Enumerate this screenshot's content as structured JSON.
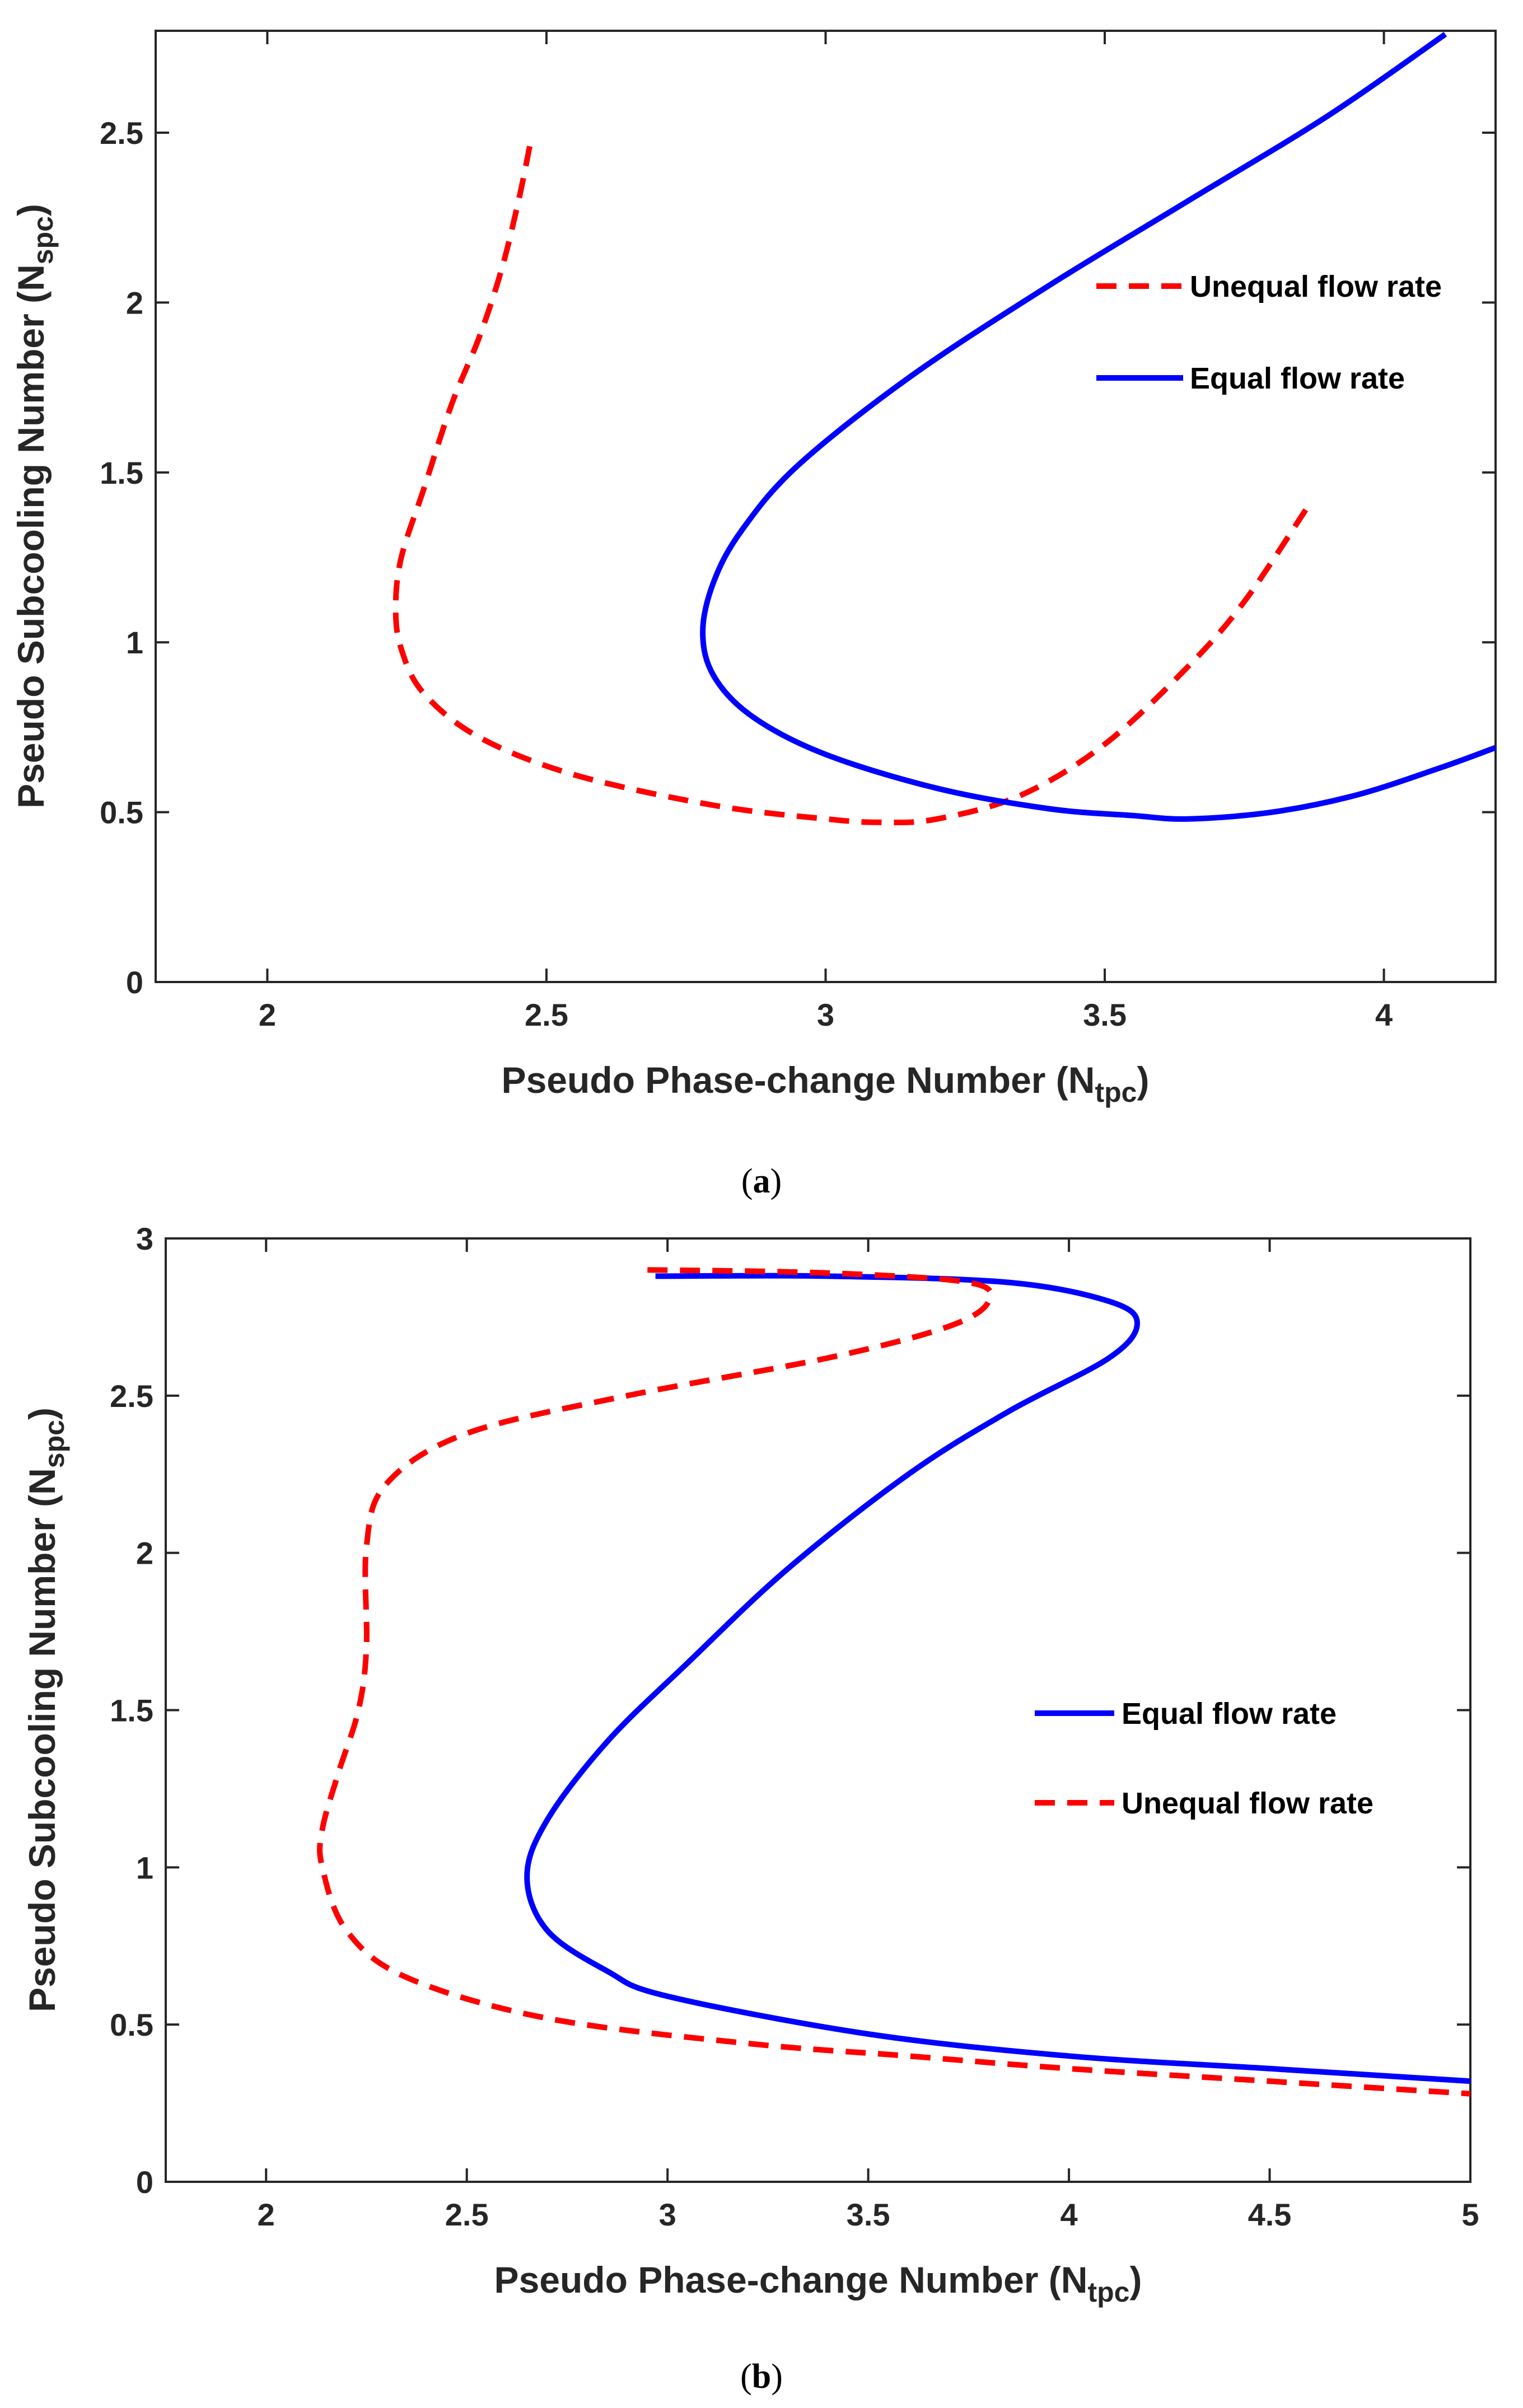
{
  "chart_data": [
    {
      "panel": "(a)",
      "type": "line",
      "caption_open": "(",
      "caption_letter": "a",
      "caption_close": ")",
      "xlabel_main": "Pseudo Phase-change Number (N",
      "xlabel_sub": "tpc",
      "xlabel_close": ")",
      "ylabel_main": "Pseudo Subcooling Number (N",
      "ylabel_sub": "spc",
      "ylabel_close": ")",
      "xlim": [
        1.8,
        4.2
      ],
      "ylim": [
        0,
        2.8
      ],
      "xticks": [
        "2",
        "2.5",
        "3",
        "3.5",
        "4"
      ],
      "xtick_values": [
        2,
        2.5,
        3,
        3.5,
        4
      ],
      "yticks": [
        "0",
        "0.5",
        "1",
        "1.5",
        "2",
        "2.5"
      ],
      "ytick_values": [
        0,
        0.5,
        1,
        1.5,
        2,
        2.5
      ],
      "legend_location": "right",
      "series": [
        {
          "name": "Unequal flow rate",
          "color": "#ff0000",
          "style": "dashed",
          "x": [
            2.47,
            2.45,
            2.42,
            2.38,
            2.33,
            2.28,
            2.24,
            2.23,
            2.24,
            2.28,
            2.38,
            2.55,
            2.8,
            3.0,
            3.1,
            3.2,
            3.35,
            3.5,
            3.65,
            3.75,
            3.86
          ],
          "y": [
            2.46,
            2.3,
            2.1,
            1.9,
            1.7,
            1.45,
            1.25,
            1.1,
            0.98,
            0.85,
            0.72,
            0.61,
            0.52,
            0.48,
            0.47,
            0.48,
            0.55,
            0.7,
            0.93,
            1.12,
            1.39
          ]
        },
        {
          "name": "Equal flow rate",
          "color": "#0000ff",
          "style": "solid",
          "x": [
            4.11,
            3.9,
            3.65,
            3.4,
            3.15,
            2.95,
            2.85,
            2.8,
            2.78,
            2.8,
            2.87,
            3.0,
            3.2,
            3.4,
            3.55,
            3.65,
            3.8,
            3.95,
            4.1,
            4.2
          ],
          "y": [
            2.79,
            2.55,
            2.3,
            2.05,
            1.78,
            1.52,
            1.33,
            1.18,
            1.03,
            0.9,
            0.78,
            0.67,
            0.57,
            0.51,
            0.49,
            0.48,
            0.5,
            0.55,
            0.63,
            0.69
          ]
        }
      ]
    },
    {
      "panel": "(b)",
      "type": "line",
      "caption_open": "(",
      "caption_letter": "b",
      "caption_close": ")",
      "xlabel_main": "Pseudo Phase-change Number (N",
      "xlabel_sub": "tpc",
      "xlabel_close": ")",
      "ylabel_main": "Pseudo Subcooling Number (N",
      "ylabel_sub": "spc",
      "ylabel_close": ")",
      "xlim": [
        1.75,
        5
      ],
      "ylim": [
        0,
        3
      ],
      "xticks": [
        "2",
        "2.5",
        "3",
        "3.5",
        "4",
        "4.5",
        "5"
      ],
      "xtick_values": [
        2,
        2.5,
        3,
        3.5,
        4,
        4.5,
        5
      ],
      "yticks": [
        "0",
        "0.5",
        "1",
        "1.5",
        "2",
        "2.5",
        "3"
      ],
      "ytick_values": [
        0,
        0.5,
        1,
        1.5,
        2,
        2.5,
        3
      ],
      "legend_location": "right",
      "series": [
        {
          "name": "Equal flow rate",
          "color": "#0000ff",
          "style": "solid",
          "x": [
            2.97,
            3.4,
            3.85,
            4.1,
            4.17,
            4.1,
            3.85,
            3.6,
            3.3,
            3.05,
            2.85,
            2.7,
            2.65,
            2.7,
            2.85,
            3.0,
            3.5,
            4.0,
            4.5,
            5.0
          ],
          "y": [
            2.88,
            2.88,
            2.86,
            2.8,
            2.73,
            2.62,
            2.45,
            2.25,
            1.95,
            1.65,
            1.4,
            1.15,
            0.97,
            0.8,
            0.67,
            0.59,
            0.47,
            0.4,
            0.36,
            0.32
          ]
        },
        {
          "name": "Unequal flow rate",
          "color": "#ff0000",
          "style": "dashed",
          "x": [
            2.95,
            3.4,
            3.75,
            3.8,
            3.7,
            3.4,
            2.9,
            2.5,
            2.3,
            2.25,
            2.25,
            2.23,
            2.18,
            2.14,
            2.14,
            2.2,
            2.35,
            2.7,
            3.2,
            3.6,
            4.0,
            4.5,
            5.0
          ],
          "y": [
            2.9,
            2.89,
            2.86,
            2.8,
            2.72,
            2.62,
            2.5,
            2.38,
            2.22,
            2.02,
            1.7,
            1.5,
            1.3,
            1.12,
            1.0,
            0.8,
            0.65,
            0.52,
            0.44,
            0.4,
            0.36,
            0.32,
            0.28
          ]
        }
      ]
    }
  ]
}
